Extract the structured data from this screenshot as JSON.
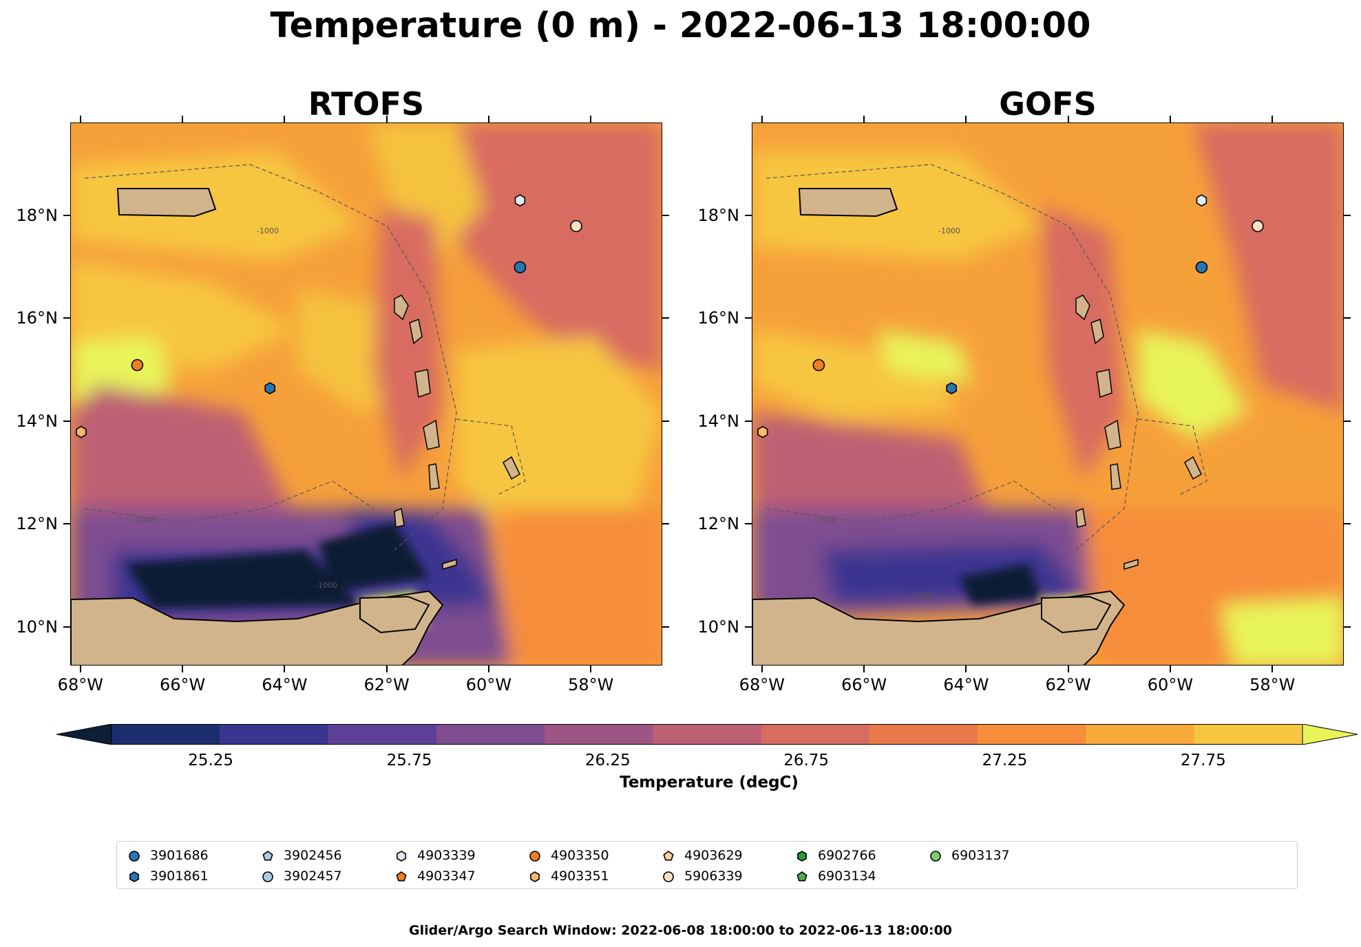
{
  "suptitle": "Temperature (0 m) - 2022-06-13 18:00:00",
  "panels": [
    {
      "title": "RTOFS"
    },
    {
      "title": "GOFS"
    }
  ],
  "axes": {
    "lat_labels": [
      "18°N",
      "16°N",
      "14°N",
      "12°N",
      "10°N"
    ],
    "lat_values": [
      18,
      16,
      14,
      12,
      10
    ],
    "lon_labels": [
      "68°W",
      "66°W",
      "64°W",
      "62°W",
      "60°W",
      "58°W"
    ],
    "lon_values": [
      -68,
      -66,
      -64,
      -62,
      -60,
      -58
    ],
    "lon_range": [
      -68.2,
      -56.6
    ],
    "lat_range": [
      9.25,
      19.8
    ]
  },
  "bathymetry_labels": [
    "-1000",
    "-1000",
    "-1000",
    "-100",
    "-1000"
  ],
  "colorbar": {
    "title": "Temperature (degC)",
    "tick_labels": [
      "25.25",
      "25.75",
      "26.25",
      "26.75",
      "27.25",
      "27.75"
    ],
    "tick_values": [
      25.25,
      25.75,
      26.25,
      26.75,
      27.25,
      27.75
    ],
    "range": [
      25.0,
      28.0
    ],
    "extend": "both",
    "colors": [
      "#0c1f35",
      "#1c2e6e",
      "#3a3690",
      "#5e4197",
      "#7e4d90",
      "#9d5583",
      "#bd6073",
      "#d86c61",
      "#ea7a4b",
      "#f68d3a",
      "#f7a93a",
      "#f7c640",
      "#e8f55a"
    ]
  },
  "legend": {
    "entries": [
      {
        "id": "3901686",
        "marker": "circle",
        "color": "#2777b4"
      },
      {
        "id": "3901861",
        "marker": "hexagon",
        "color": "#2777b4"
      },
      {
        "id": "3902456",
        "marker": "pentagon",
        "color": "#a7cee3"
      },
      {
        "id": "3902457",
        "marker": "circle",
        "color": "#a7cee3"
      },
      {
        "id": "4903339",
        "marker": "hexagon",
        "color": "#deebf7"
      },
      {
        "id": "4903347",
        "marker": "pentagon",
        "color": "#f07f20"
      },
      {
        "id": "4903350",
        "marker": "circle",
        "color": "#f07f20"
      },
      {
        "id": "4903351",
        "marker": "hexagon",
        "color": "#fdb56b"
      },
      {
        "id": "4903629",
        "marker": "pentagon",
        "color": "#fdd29e"
      },
      {
        "id": "5906339",
        "marker": "circle",
        "color": "#fde0c4"
      },
      {
        "id": "6902766",
        "marker": "hexagon",
        "color": "#2a9a3a"
      },
      {
        "id": "6903134",
        "marker": "pentagon",
        "color": "#4aae4a"
      },
      {
        "id": "6903137",
        "marker": "circle",
        "color": "#7fcd6c"
      }
    ]
  },
  "floats": [
    {
      "id": "4903339",
      "lon": -59.4,
      "lat": 18.3,
      "marker": "hexagon",
      "color": "#deebf7"
    },
    {
      "id": "5906339",
      "lon": -58.3,
      "lat": 17.8,
      "marker": "circle",
      "color": "#fde0c4"
    },
    {
      "id": "3901686",
      "lon": -59.4,
      "lat": 17.0,
      "marker": "circle",
      "color": "#2777b4"
    },
    {
      "id": "4903350",
      "lon": -66.9,
      "lat": 15.1,
      "marker": "circle",
      "color": "#f07f20"
    },
    {
      "id": "3901861",
      "lon": -64.3,
      "lat": 14.65,
      "marker": "hexagon",
      "color": "#2777b4"
    },
    {
      "id": "4903351",
      "lon": -68.0,
      "lat": 13.8,
      "marker": "hexagon",
      "color": "#fdb56b"
    }
  ],
  "footer": "Glider/Argo Search Window: 2022-06-08 18:00:00 to 2022-06-13 18:00:00"
}
